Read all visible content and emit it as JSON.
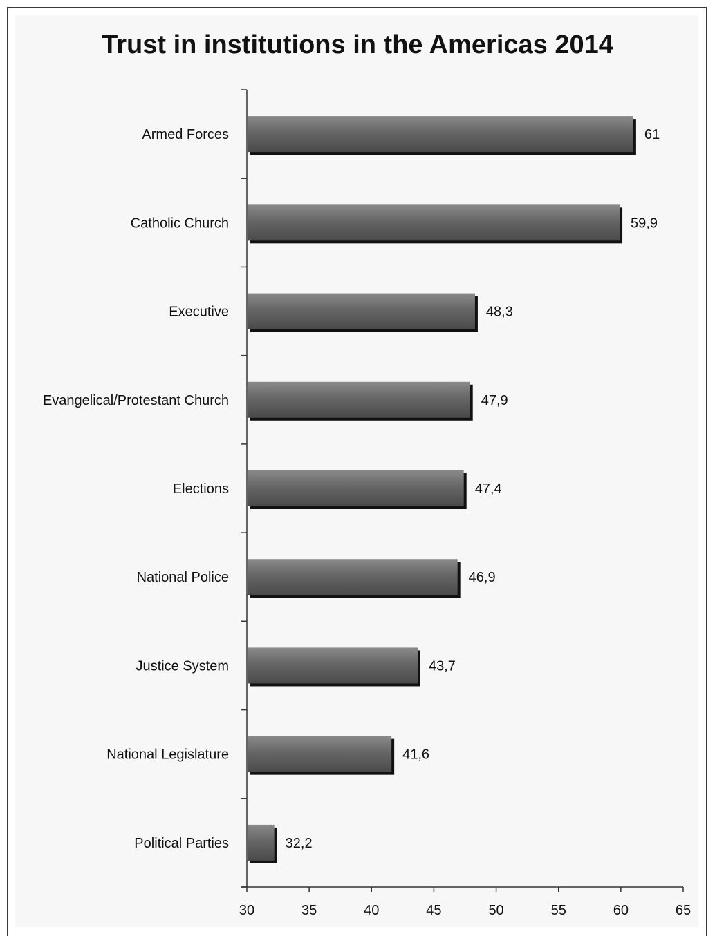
{
  "chart_data": {
    "type": "bar",
    "orientation": "horizontal",
    "title": "Trust in institutions in the Americas 2014",
    "categories": [
      "Armed Forces",
      "Catholic Church",
      "Executive",
      "Evangelical/Protestant Church",
      "Elections",
      "National Police",
      "Justice System",
      "National Legislature",
      "Political Parties"
    ],
    "values": [
      61,
      59.9,
      48.3,
      47.9,
      47.4,
      46.9,
      43.7,
      41.6,
      32.2
    ],
    "value_labels": [
      "61",
      "59,9",
      "48,3",
      "47,9",
      "47,4",
      "46,9",
      "43,7",
      "41,6",
      "32,2"
    ],
    "xlim": [
      30,
      65
    ],
    "xticks": [
      30,
      35,
      40,
      45,
      50,
      55,
      60,
      65
    ],
    "xlabel": "",
    "ylabel": "",
    "grid": false,
    "bar_color": "#5a5a5a",
    "bar_shadow_color": "#111111"
  }
}
